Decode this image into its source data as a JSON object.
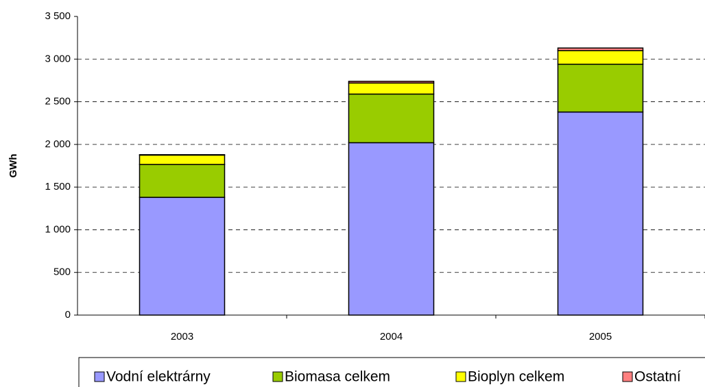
{
  "chart_data": {
    "type": "stacked_bar",
    "y_label": "GWh",
    "categories": [
      "2003",
      "2004",
      "2005"
    ],
    "series": [
      {
        "name": "Vodní elektrárny",
        "color": "#9999ff",
        "values": [
          1380,
          2020,
          2380
        ]
      },
      {
        "name": "Biomasa celkem",
        "color": "#99cc00",
        "values": [
          385,
          570,
          560
        ]
      },
      {
        "name": "Bioplyn celkem",
        "color": "#ffff00",
        "values": [
          110,
          130,
          160
        ]
      },
      {
        "name": "Ostatní",
        "color": "#ff8080",
        "values": [
          5,
          20,
          30
        ]
      }
    ],
    "ylim": [
      0,
      3500
    ],
    "yticks": [
      0,
      500,
      {
        "value": 1000,
        "label": "1 000"
      },
      {
        "value": 1500,
        "label": "1 500"
      },
      {
        "value": 2000,
        "label": "2 000"
      },
      {
        "value": 2500,
        "label": "2 500"
      },
      {
        "value": 3000,
        "label": "3 000"
      },
      {
        "value": 3500,
        "label": "3 500"
      }
    ],
    "grid": true,
    "legend": "bottom"
  }
}
